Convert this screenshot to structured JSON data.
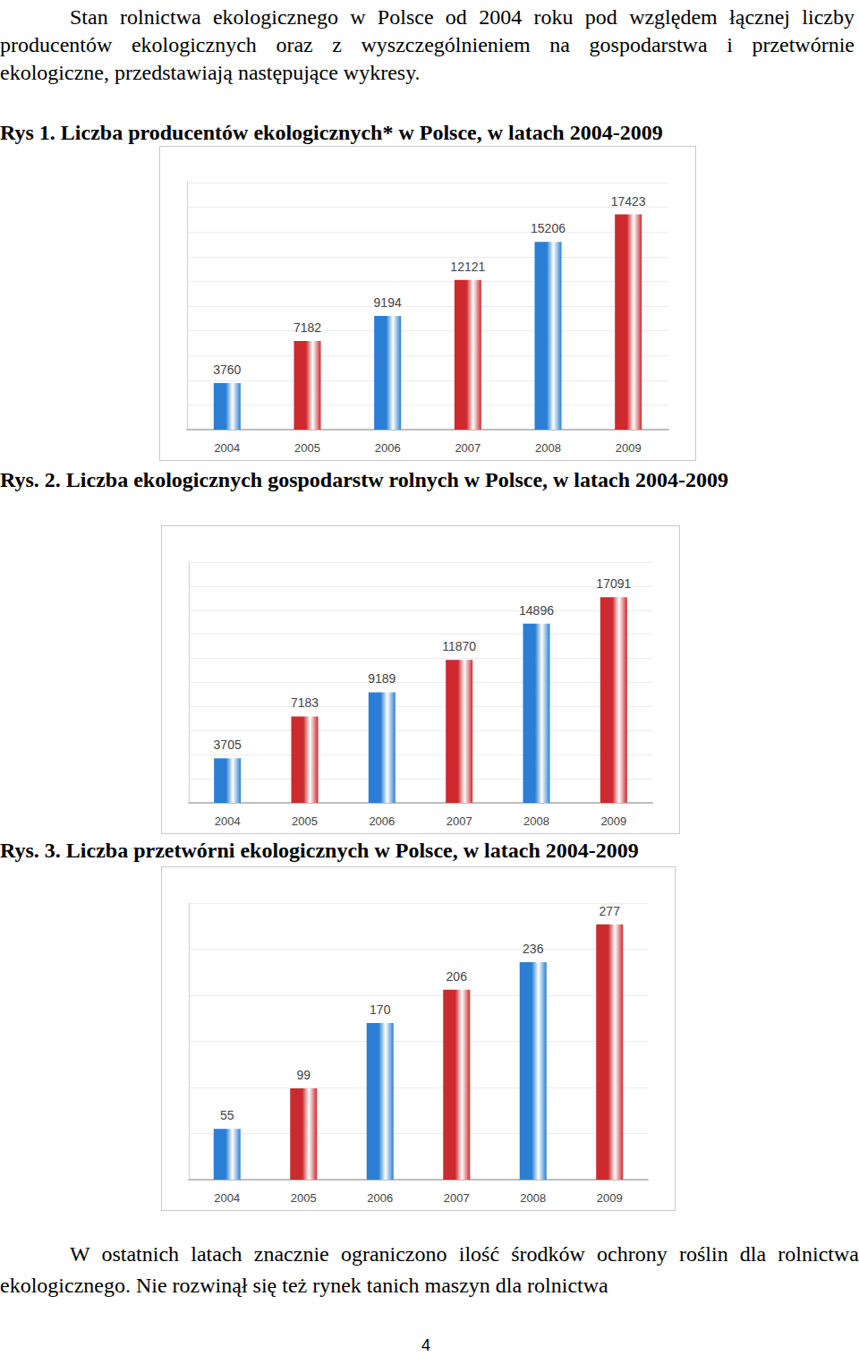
{
  "intro": "Stan rolnictwa ekologicznego w Polsce od 2004 roku pod względem łącznej liczby producentów ekologicznych oraz z wyszczególnieniem na gospodarstwa i przetwórnie ekologiczne, przedstawiają następujące wykresy.",
  "chart_data": [
    {
      "type": "bar",
      "title": "Rys 1. Liczba producentów ekologicznych* w Polsce, w latach 2004-2009",
      "categories": [
        "2004",
        "2005",
        "2006",
        "2007",
        "2008",
        "2009"
      ],
      "values": [
        3760,
        7182,
        9194,
        12121,
        15206,
        17423
      ],
      "colors": [
        "#2a7fd4",
        "#cc2a2e",
        "#2a7fd4",
        "#cc2a2e",
        "#2a7fd4",
        "#cc2a2e"
      ],
      "ylim": [
        0,
        20000
      ],
      "yticks": [
        0,
        2000,
        4000,
        6000,
        8000,
        10000,
        12000,
        14000,
        16000,
        18000,
        20000
      ],
      "grid": true,
      "data_labels": true,
      "tick_labels": "x"
    },
    {
      "type": "bar",
      "title": "Rys. 2. Liczba ekologicznych gospodarstw rolnych w Polsce, w latach 2004-2009",
      "categories": [
        "2004",
        "2005",
        "2006",
        "2007",
        "2008",
        "2009"
      ],
      "values": [
        3705,
        7183,
        9189,
        11870,
        14896,
        17091
      ],
      "colors": [
        "#2a7fd4",
        "#cc2a2e",
        "#2a7fd4",
        "#cc2a2e",
        "#2a7fd4",
        "#cc2a2e"
      ],
      "ylim": [
        0,
        20000
      ],
      "yticks": [
        0,
        2000,
        4000,
        6000,
        8000,
        10000,
        12000,
        14000,
        16000,
        18000,
        20000
      ],
      "grid": true,
      "data_labels": true,
      "tick_labels": "x"
    },
    {
      "type": "bar",
      "title": "Rys. 3. Liczba przetwórni ekologicznych w Polsce, w latach 2004-2009",
      "categories": [
        "2004",
        "2005",
        "2006",
        "2007",
        "2008",
        "2009"
      ],
      "values": [
        55,
        99,
        170,
        206,
        236,
        277
      ],
      "colors": [
        "#2a7fd4",
        "#cc2a2e",
        "#2a7fd4",
        "#cc2a2e",
        "#2a7fd4",
        "#cc2a2e"
      ],
      "ylim": [
        0,
        300
      ],
      "yticks": [
        0,
        50,
        100,
        150,
        200,
        250,
        300
      ],
      "grid": true,
      "data_labels": true,
      "tick_labels": "x"
    }
  ],
  "body": "W ostatnich latach znacznie ograniczono ilość środków ochrony roślin dla rolnictwa ekologicznego. Nie rozwinął się też rynek tanich maszyn dla rolnictwa",
  "page_number": 4
}
